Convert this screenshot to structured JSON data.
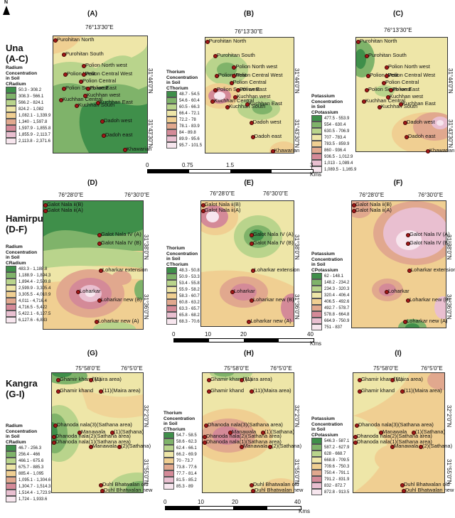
{
  "north_label": "N",
  "regions": [
    {
      "name": "Una",
      "range": "(A-C)"
    },
    {
      "name": "Hamirpur",
      "range": "(D-F)"
    },
    {
      "name": "Kangra",
      "range": "(G-I)"
    }
  ],
  "panels": [
    {
      "letter": "(A)",
      "top_coord": "76°13'30\"E",
      "side_coords": [
        "31°44'0\"N",
        "31°43'30\"N"
      ]
    },
    {
      "letter": "(B)",
      "top_coord": "76°13'30\"E",
      "side_coords": [
        "31°44'0\"N",
        "31°43'30\"N"
      ]
    },
    {
      "letter": "(C)",
      "top_coord": "76°13'30\"E",
      "side_coords": [
        "31°44'0\"N",
        "31°43'30\"N"
      ]
    },
    {
      "letter": "(D)",
      "top_coord": "76°28'0\"E",
      "top_coord2": "76°30'0\"E",
      "side_coords": [
        "31°38'0\"N",
        "31°36'0\"N"
      ]
    },
    {
      "letter": "(E)",
      "top_coord": "76°28'0\"E",
      "top_coord2": "76°30'0\"E",
      "side_coords": [
        "31°38'0\"N",
        "31°36'0\"N"
      ]
    },
    {
      "letter": "(F)",
      "top_coord": "76°28'0\"E",
      "top_coord2": "76°30'0\"E",
      "side_coords": [
        "31°38'0\"N",
        "31°36'0\"N"
      ]
    },
    {
      "letter": "(G)",
      "top_coord": "75°58'0\"E",
      "top_coord2": "76°5'0\"E",
      "side_coords": [
        "32°2'0\"N",
        "31°55'0\"N"
      ]
    },
    {
      "letter": "(H)",
      "top_coord": "75°58'0\"E",
      "top_coord2": "76°5'0\"E",
      "side_coords": [
        "32°2'0\"N",
        "31°55'0\"N"
      ]
    },
    {
      "letter": "(I)",
      "top_coord": "75°58'0\"E",
      "top_coord2": "76°5'0\"E",
      "side_coords": [
        "32°2'0\"N",
        "31°55'0\"N"
      ]
    }
  ],
  "una_sites": [
    "Purohitan North",
    "Purohitan South",
    "Polion North west",
    "Polion West",
    "Polion Central West",
    "Polion Central",
    "Polion South west",
    "Polion East",
    "Kuchhan west",
    "Kuchhan Central",
    "Kuchhan South",
    "Kuchhan East",
    "Dadoh west",
    "Dadoh east",
    "Khawarian"
  ],
  "hamirpur_sites": [
    "Galot Nala ii(B)",
    "Galot Nala ii(A)",
    "Galot Nala IV (A)",
    "Galot Nala IV (B)",
    "Loharkar extension",
    "Loharkar",
    "Loharkar new (B)",
    "Loharkar new (A)"
  ],
  "kangra_sites": [
    "Ghamir khand (1)",
    "(Maira area)",
    "Ghamir khand",
    "(11)(Maira area)",
    "Dhanoda nala(3)(Sathana area)",
    "Manawala",
    "(1)(Sathana)",
    "Dhanoda nala(2)(Sathana area)",
    "Dhanoda nala(1)(Sathana area)",
    "Manawala",
    "(2)(Sathana)",
    "Duhl Bhatwalan old",
    "Duhl Bhatwalan new"
  ],
  "legends": {
    "una_ra": {
      "title": [
        "Radium",
        "Concentration",
        "in Soil",
        "CRadium"
      ],
      "colors": [
        "#3f8f4a",
        "#7fb36a",
        "#b9d48c",
        "#eee6a8",
        "#f0cf92",
        "#e1a88e",
        "#d48a98",
        "#e9bfd0",
        "#f7e6ee"
      ],
      "labels": [
        "50.3 - 308.2",
        "308.3 - 566.1",
        "566.2 - 824.1",
        "824.2 - 1,082",
        "1,082.1 - 1,339.9",
        "1,340 - 1,597.8",
        "1,597.9 - 1,855.8",
        "1,855.9 - 2,113.7",
        "2,113.8 - 2,371.6"
      ]
    },
    "una_th": {
      "title": [
        "Thorium",
        "Concentration",
        "in Soil",
        "CThorium"
      ],
      "colors": [
        "#3f8f4a",
        "#7fb36a",
        "#b9d48c",
        "#eee6a8",
        "#f0cf92",
        "#e1a88e",
        "#d48a98",
        "#e9bfd0",
        "#f7e6ee"
      ],
      "labels": [
        "48.7 - 54.5",
        "54.6 - 60.4",
        "60.5 - 66.3",
        "66.4 - 72.1",
        "72.2 - 78",
        "78.1 - 83.9",
        "84 - 89.8",
        "89.9 - 95.6",
        "95.7 - 101.5"
      ]
    },
    "una_k": {
      "title": [
        "Potassium",
        "Concentration",
        "in Soil",
        "CPotassium"
      ],
      "colors": [
        "#3f8f4a",
        "#7fb36a",
        "#b9d48c",
        "#eee6a8",
        "#f0cf92",
        "#e1a88e",
        "#d48a98",
        "#e9bfd0",
        "#f7e6ee"
      ],
      "labels": [
        "477.5 - 553.9",
        "554 - 630.4",
        "630.5 - 706.9",
        "707 - 783.4",
        "783.5 - 859.9",
        "860 - 936.4",
        "936.5 - 1,012.9",
        "1,013 - 1,089.4",
        "1,089.5 - 1,165.9"
      ]
    },
    "ham_ra": {
      "title": [
        "Radium",
        "Concentration",
        "in Soil",
        "CRadium"
      ],
      "colors": [
        "#3f8f4a",
        "#7fb36a",
        "#b9d48c",
        "#eee6a8",
        "#f0cf92",
        "#e1a88e",
        "#d48a98",
        "#e9bfd0",
        "#f7e6ee"
      ],
      "labels": [
        "483.3 - 1,188.8",
        "1,188.9 - 1,894.3",
        "1,894.4 - 2,599.8",
        "2,599.9 - 3,305.4",
        "3,305.5 - 4,010.9",
        "4,011 - 4,716.4",
        "4,716.5 - 5,422",
        "5,422.1 - 6,127.5",
        "6,127.6 - 6,833"
      ]
    },
    "ham_th": {
      "title": [
        "Thorium",
        "Concentration",
        "in Soil",
        "CThorium"
      ],
      "colors": [
        "#3f8f4a",
        "#7fb36a",
        "#b9d48c",
        "#eee6a8",
        "#f0cf92",
        "#e1a88e",
        "#d48a98",
        "#e9bfd0",
        "#f7e6ee"
      ],
      "labels": [
        "48.3 - 50.8",
        "50.9 - 53.3",
        "53.4 - 55.8",
        "55.9 - 58.2",
        "58.3 - 60.7",
        "60.8 - 63.2",
        "63.3 - 65.7",
        "65.8 - 68.2",
        "68.3 - 70.6"
      ]
    },
    "ham_k": {
      "title": [
        "Potassium",
        "Concentration",
        "in Soil",
        "CPotassium"
      ],
      "colors": [
        "#3f8f4a",
        "#7fb36a",
        "#b9d48c",
        "#eee6a8",
        "#f0cf92",
        "#e1a88e",
        "#d48a98",
        "#e9bfd0",
        "#f7e6ee"
      ],
      "labels": [
        "62 - 148.1",
        "148.2 - 234.2",
        "234.3 - 320.3",
        "320.4 - 406.4",
        "406.5 - 492.6",
        "492.7 - 578.7",
        "578.8 - 664.8",
        "664.9 - 750.9",
        "751 - 837"
      ]
    },
    "kan_ra": {
      "title": [
        "Radium",
        "Concentration",
        "in Soil",
        "CRadium"
      ],
      "colors": [
        "#3f8f4a",
        "#7fb36a",
        "#b9d48c",
        "#eee6a8",
        "#f0cf92",
        "#e1a88e",
        "#d48a98",
        "#e9bfd0",
        "#f7e6ee"
      ],
      "labels": [
        "46.7 - 256.3",
        "256.4 - 466",
        "466.1 - 675.6",
        "675.7 - 885.3",
        "885.4 - 1,095",
        "1,095.1 - 1,304.6",
        "1,304.7 - 1,514.3",
        "1,514.4 - 1,723.9",
        "1,724 - 1,933.6"
      ]
    },
    "kan_th": {
      "title": [
        "Thorium",
        "Concentration",
        "in Soil",
        "CThorium"
      ],
      "colors": [
        "#3f8f4a",
        "#7fb36a",
        "#b9d48c",
        "#eee6a8",
        "#f0cf92",
        "#e1a88e",
        "#d48a98",
        "#e9bfd0",
        "#f7e6ee"
      ],
      "labels": [
        "54.7 - 58.5",
        "58.6 - 62.3",
        "62.4 - 66.1",
        "66.2 - 69.9",
        "70 - 73.7",
        "73.8 - 77.6",
        "77.7 - 81.4",
        "81.5 - 85.2",
        "85.3 - 89"
      ]
    },
    "kan_k": {
      "title": [
        "Potassium",
        "Concentration",
        "in Soil",
        "CPotassium"
      ],
      "colors": [
        "#3f8f4a",
        "#7fb36a",
        "#b9d48c",
        "#eee6a8",
        "#f0cf92",
        "#e1a88e",
        "#d48a98",
        "#e9bfd0",
        "#f7e6ee"
      ],
      "labels": [
        "546.3 - 587.1",
        "587.2 - 627.9",
        "628 - 668.7",
        "668.8 - 709.5",
        "709.6 - 750.3",
        "750.4 - 791.1",
        "791.2 - 831.9",
        "832 - 872.7",
        "872.8 - 913.5"
      ]
    }
  },
  "scalebars": [
    {
      "ticks": [
        "0",
        "0.75",
        "1.5",
        "3"
      ],
      "unit": "Kms"
    },
    {
      "ticks": [
        "0",
        "10",
        "20",
        "40"
      ],
      "unit": "Kms"
    },
    {
      "ticks": [
        "0",
        "10",
        "20",
        "40"
      ],
      "unit": "Kms"
    }
  ]
}
